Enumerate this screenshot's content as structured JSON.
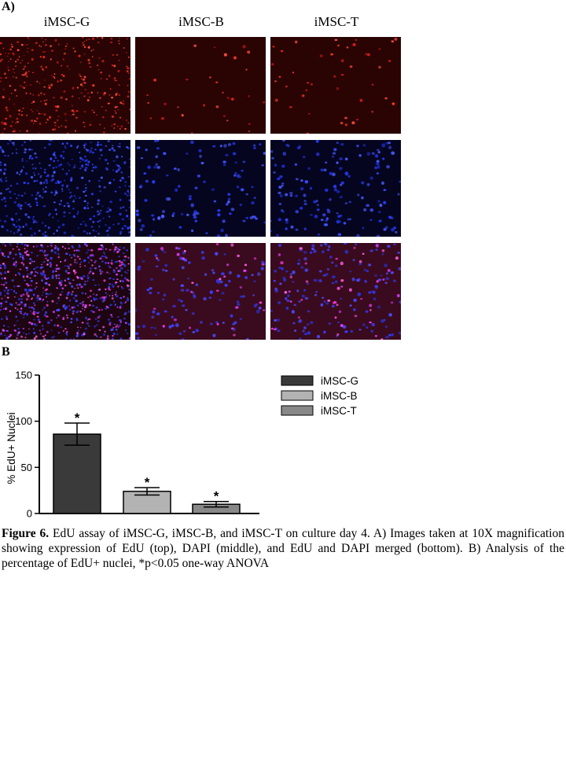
{
  "panel_a": {
    "label": "A)",
    "columns": [
      "iMSC-G",
      "iMSC-B",
      "iMSC-T"
    ],
    "rows": [
      "EdU",
      "DAPI",
      "EdU and DAPI merged"
    ]
  },
  "panel_b": {
    "label": "B"
  },
  "chart_data": {
    "type": "bar",
    "categories": [
      "iMSC-G",
      "iMSC-B",
      "iMSC-T"
    ],
    "values": [
      86,
      24,
      10
    ],
    "errors": [
      12,
      4,
      3
    ],
    "significance": [
      "*",
      "*",
      "*"
    ],
    "ylabel": "% EdU+ Nuclei",
    "xlabel": "",
    "ylim": [
      0,
      150
    ],
    "yticks": [
      0,
      50,
      100,
      150
    ],
    "legend": {
      "position": "top-right",
      "entries": [
        "iMSC-G",
        "iMSC-B",
        "iMSC-T"
      ]
    },
    "colors": [
      "#3a3a3a",
      "#b3b3b3",
      "#888888"
    ]
  },
  "caption": {
    "figure_label": "Figure 6.",
    "text": " EdU assay of iMSC-G, iMSC-B, and iMSC-T on culture day 4. A) Images taken at 10X magnification showing expression of EdU (top), DAPI (middle), and EdU and DAPI merged (bottom). B) Analysis of the percentage of EdU+ nuclei, *p<0.05 one-way ANOVA"
  }
}
